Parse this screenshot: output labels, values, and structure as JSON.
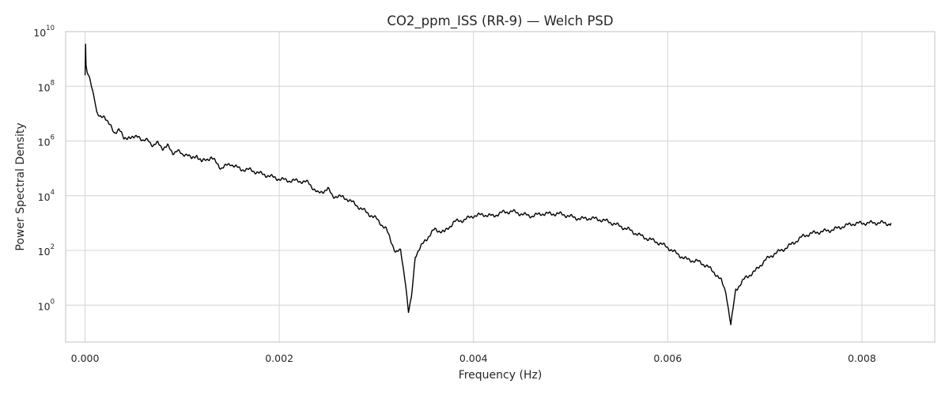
{
  "chart_data": {
    "type": "line",
    "title": "CO2_ppm_ISS (RR-9) — Welch PSD",
    "xlabel": "Frequency (Hz)",
    "ylabel": "Power Spectral Density",
    "xlim": [
      -0.0002,
      0.00875
    ],
    "ylim_log10": [
      -1.35,
      10
    ],
    "y_scale": "log",
    "grid": true,
    "line_color": "#000000",
    "x_ticks": [
      {
        "value": 0.0,
        "label": "0.000"
      },
      {
        "value": 0.002,
        "label": "0.002"
      },
      {
        "value": 0.004,
        "label": "0.004"
      },
      {
        "value": 0.006,
        "label": "0.006"
      },
      {
        "value": 0.008,
        "label": "0.008"
      }
    ],
    "y_ticks": [
      {
        "exp": 0,
        "base": "10",
        "sup": "0"
      },
      {
        "exp": 2,
        "base": "10",
        "sup": "2"
      },
      {
        "exp": 4,
        "base": "10",
        "sup": "4"
      },
      {
        "exp": 6,
        "base": "10",
        "sup": "6"
      },
      {
        "exp": 8,
        "base": "10",
        "sup": "8"
      },
      {
        "exp": 10,
        "base": "10",
        "sup": "10"
      }
    ],
    "series": [
      {
        "x": [
          0.0,
          5e-06,
          1e-05,
          2e-05,
          4e-05,
          6e-05,
          8e-05,
          0.0001,
          0.00012,
          0.00015,
          0.0002,
          0.00025,
          0.0003,
          0.00035,
          0.0004,
          0.00045,
          0.0005,
          0.00055,
          0.0006,
          0.00065,
          0.0007,
          0.00075,
          0.0008,
          0.00085,
          0.0009,
          0.00095,
          0.001,
          0.00105,
          0.0011,
          0.00115,
          0.0012,
          0.0013,
          0.0014,
          0.0015,
          0.0016,
          0.0017,
          0.0018,
          0.0019,
          0.002,
          0.0021,
          0.0022,
          0.0023,
          0.0024,
          0.0025,
          0.00255,
          0.0026,
          0.0027,
          0.0028,
          0.0029,
          0.003,
          0.0031,
          0.0032,
          0.00325,
          0.0033,
          0.00333,
          0.00336,
          0.0034,
          0.0035,
          0.0036,
          0.0037,
          0.0038,
          0.0039,
          0.004,
          0.0041,
          0.0042,
          0.0043,
          0.0044,
          0.0045,
          0.0046,
          0.0047,
          0.0048,
          0.0049,
          0.005,
          0.0051,
          0.0052,
          0.0053,
          0.0054,
          0.0055,
          0.0056,
          0.0057,
          0.0058,
          0.0059,
          0.006,
          0.0061,
          0.0062,
          0.0063,
          0.0064,
          0.0065,
          0.00655,
          0.0066,
          0.00665,
          0.0067,
          0.0068,
          0.0069,
          0.007,
          0.0071,
          0.0072,
          0.0073,
          0.0074,
          0.0075,
          0.0076,
          0.0077,
          0.0078,
          0.0079,
          0.008,
          0.0081,
          0.0082,
          0.0083
        ],
        "log10_y": [
          8.4,
          9.5,
          8.7,
          8.5,
          8.3,
          8.1,
          7.8,
          7.5,
          7.0,
          6.8,
          6.9,
          6.6,
          6.3,
          6.5,
          6.1,
          6.2,
          6.1,
          6.2,
          5.95,
          6.0,
          5.8,
          5.9,
          5.75,
          5.85,
          5.6,
          5.7,
          5.5,
          5.55,
          5.3,
          5.45,
          5.2,
          5.4,
          5.05,
          5.2,
          4.95,
          4.9,
          4.8,
          4.75,
          4.65,
          4.55,
          4.5,
          4.45,
          4.1,
          4.3,
          4.0,
          4.0,
          3.85,
          3.6,
          3.4,
          3.2,
          2.8,
          1.9,
          1.95,
          0.8,
          -0.3,
          0.2,
          1.8,
          2.4,
          2.8,
          2.65,
          3.0,
          3.1,
          3.3,
          3.35,
          3.25,
          3.35,
          3.4,
          3.35,
          3.3,
          3.35,
          3.3,
          3.3,
          3.25,
          3.2,
          3.2,
          3.1,
          3.0,
          2.9,
          2.8,
          2.6,
          2.4,
          2.25,
          2.1,
          1.9,
          1.7,
          1.6,
          1.4,
          1.1,
          0.9,
          0.5,
          -0.7,
          0.6,
          1.0,
          1.2,
          1.6,
          1.9,
          2.1,
          2.3,
          2.5,
          2.6,
          2.7,
          2.8,
          2.9,
          2.95,
          2.95,
          3.0,
          3.05,
          3.0
        ]
      }
    ]
  }
}
